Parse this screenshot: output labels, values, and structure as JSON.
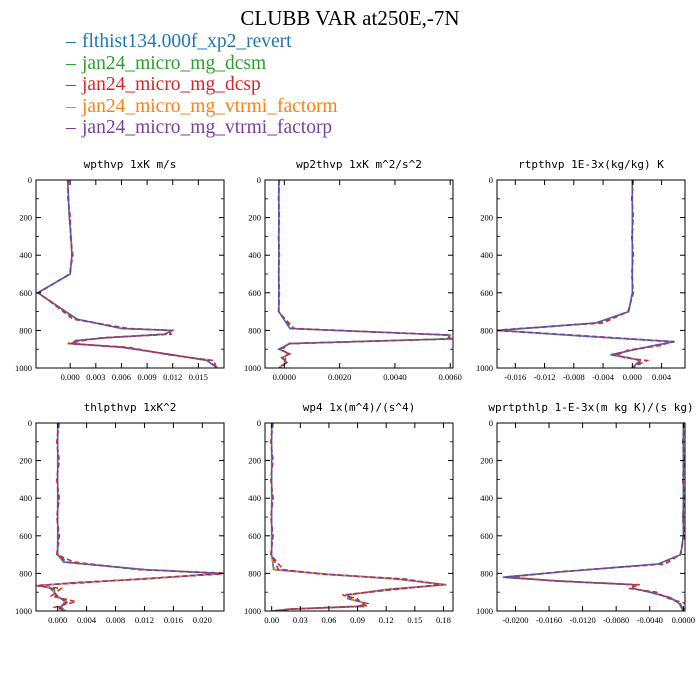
{
  "title": "CLUBB VAR at250E,-7N",
  "legend": [
    {
      "label": "flthist134.000f_xp2_revert",
      "color": "#1f77b4",
      "dash": "solid"
    },
    {
      "label": "jan24_micro_mg_dcsm",
      "color": "#2ca02c",
      "dash": "dashed"
    },
    {
      "label": "jan24_micro_mg_dcsp",
      "color": "#d62728",
      "dash": "dashed"
    },
    {
      "label": "jan24_micro_mg_vtrmi_factorm",
      "color": "#ff7f0e",
      "dash": "dashed"
    },
    {
      "label": "jan24_micro_mg_vtrmi_factorp",
      "color": "#7b3f9e",
      "dash": "dashed"
    }
  ],
  "chart_data": [
    {
      "type": "line",
      "title": "wpthvp  1xK m/s",
      "xlim": [
        -0.004,
        0.018
      ],
      "ylim": [
        1000,
        0
      ],
      "xticks": [
        0.0,
        0.003,
        0.006,
        0.009,
        0.012,
        0.015
      ],
      "xticklabels": [
        "0.000",
        "0.003",
        "0.006",
        "0.009",
        "0.012",
        "0.015"
      ],
      "yticks": [
        0,
        200,
        400,
        600,
        800,
        1000
      ],
      "series": [
        {
          "x": [
            -0.0003,
            -0.0002,
            -0.0001,
            0.0001,
            0.0002,
            0.0,
            -0.0038,
            0.0008,
            0.006,
            0.012,
            0.011,
            0.004,
            0.0006,
            0.0002,
            0.006,
            0.012,
            0.016,
            0.0172
          ],
          "y": [
            0,
            100,
            200,
            300,
            400,
            500,
            600,
            740,
            790,
            800,
            820,
            840,
            855,
            870,
            890,
            930,
            960,
            1000
          ],
          "vary": [
            0,
            0.0002,
            0.0008,
            0.0001,
            0.0001,
            0.0008
          ]
        }
      ]
    },
    {
      "type": "line",
      "title": "wp2thvp  1xK m^2/s^2",
      "xlim": [
        -0.0007,
        0.0061
      ],
      "ylim": [
        1000,
        0
      ],
      "xticks": [
        0.0,
        0.002,
        0.004,
        0.006
      ],
      "xticklabels": [
        "0.0000",
        "0.0020",
        "0.0040",
        "0.0060"
      ],
      "yticks": [
        0,
        200,
        400,
        600,
        800,
        1000
      ],
      "series": [
        {
          "x": [
            -0.0002,
            -0.0002,
            -0.0002,
            -0.0002,
            -0.0002,
            -0.0002,
            -0.0002,
            -0.0002,
            0.0002,
            0.006,
            0.0059,
            0.0002,
            -0.0002,
            0.0002,
            -0.0001,
            0.0001,
            -0.0002
          ],
          "y": [
            0,
            100,
            200,
            300,
            400,
            500,
            600,
            700,
            790,
            825,
            845,
            870,
            900,
            925,
            945,
            970,
            1000
          ],
          "vary": [
            0,
            5e-05,
            0.00015,
            1e-05,
            2e-05,
            0.0002
          ]
        }
      ]
    },
    {
      "type": "line",
      "title": "rtpthvp  1E-3x(kg/kg) K",
      "xlim": [
        -0.0185,
        0.0072
      ],
      "ylim": [
        1000,
        0
      ],
      "xticks": [
        -0.016,
        -0.012,
        -0.008,
        -0.004,
        0.0,
        0.004
      ],
      "xticklabels": [
        "-0.016",
        "-0.012",
        "-0.008",
        "-0.004",
        "0.000",
        "0.004"
      ],
      "yticks": [
        0,
        200,
        400,
        600,
        800,
        1000
      ],
      "series": [
        {
          "x": [
            0.0,
            0.0,
            0.0,
            0.0,
            0.0,
            0.0,
            0.0,
            -0.0005,
            -0.005,
            -0.0183,
            -0.007,
            0.0058,
            0.003,
            0.0,
            -0.003,
            -0.0005,
            0.001,
            0.0
          ],
          "y": [
            0,
            100,
            200,
            300,
            400,
            500,
            600,
            700,
            760,
            800,
            830,
            860,
            880,
            905,
            930,
            945,
            960,
            1000
          ],
          "vary": [
            0,
            0.0003,
            0.001,
            0.0001,
            0.0002,
            0.0008
          ]
        }
      ]
    },
    {
      "type": "line",
      "title": "thlpthvp  1xK^2",
      "xlim": [
        -0.003,
        0.023
      ],
      "ylim": [
        1000,
        0
      ],
      "xticks": [
        0.0,
        0.004,
        0.008,
        0.012,
        0.016,
        0.02
      ],
      "xticklabels": [
        "0.000",
        "0.004",
        "0.008",
        "0.012",
        "0.016",
        "0.020"
      ],
      "yticks": [
        0,
        200,
        400,
        600,
        800,
        1000
      ],
      "series": [
        {
          "x": [
            0.0,
            0.0,
            0.0,
            0.0,
            0.0,
            0.0,
            0.0,
            0.0,
            0.0008,
            0.012,
            0.0225,
            0.012,
            0.002,
            -0.0025,
            -0.001,
            0.0,
            0.001,
            0.0005,
            0.001
          ],
          "y": [
            0,
            100,
            200,
            300,
            400,
            500,
            600,
            700,
            740,
            780,
            800,
            830,
            850,
            865,
            880,
            920,
            950,
            980,
            1000
          ],
          "vary": [
            0,
            0.0005,
            0.0015,
            0.0001,
            0.0003,
            0.0008
          ]
        }
      ]
    },
    {
      "type": "line",
      "title": "wp4  1x(m^4)/(s^4)",
      "xlim": [
        -0.007,
        0.19
      ],
      "ylim": [
        1000,
        0
      ],
      "xticks": [
        0.0,
        0.03,
        0.06,
        0.09,
        0.12,
        0.15,
        0.18
      ],
      "xticklabels": [
        "0.00",
        "0.03",
        "0.06",
        "0.09",
        "0.12",
        "0.15",
        "0.18"
      ],
      "yticks": [
        0,
        200,
        400,
        600,
        800,
        1000
      ],
      "series": [
        {
          "x": [
            0.0,
            0.0,
            0.0,
            0.0,
            0.0,
            0.0,
            0.0,
            0.0,
            0.002,
            0.06,
            0.13,
            0.183,
            0.12,
            0.08,
            0.08,
            0.1,
            0.09,
            0.02,
            0.0
          ],
          "y": [
            0,
            100,
            200,
            300,
            400,
            500,
            600,
            700,
            780,
            805,
            830,
            860,
            885,
            915,
            935,
            960,
            975,
            990,
            1000
          ],
          "vary": [
            0,
            0.0005,
            0.01,
            0.001,
            0.005,
            0.02
          ]
        }
      ]
    },
    {
      "type": "line",
      "title": "wprtpthlp  1-E-3x(m kg K)/(s kg)",
      "xlim": [
        -0.0222,
        0.0002
      ],
      "ylim": [
        1000,
        0
      ],
      "xticks": [
        -0.02,
        -0.016,
        -0.012,
        -0.008,
        -0.004,
        0.0
      ],
      "xticklabels": [
        "-0.0200",
        "-0.0160",
        "-0.0120",
        "-0.0080",
        "-0.0040",
        "0.0000"
      ],
      "yticks": [
        0,
        200,
        400,
        600,
        800,
        1000
      ],
      "series": [
        {
          "x": [
            0.0,
            0.0,
            0.0,
            0.0,
            0.0,
            0.0,
            0.0,
            -0.0003,
            -0.003,
            -0.014,
            -0.0215,
            -0.015,
            -0.006,
            -0.006,
            -0.004,
            -0.0015,
            -0.0005,
            0.0
          ],
          "y": [
            0,
            100,
            200,
            300,
            400,
            500,
            600,
            700,
            750,
            790,
            820,
            840,
            860,
            880,
            900,
            930,
            960,
            1000
          ],
          "vary": [
            0,
            0.00015,
            0.0008,
            0.0001,
            0.0001,
            0.0006
          ]
        }
      ]
    }
  ]
}
